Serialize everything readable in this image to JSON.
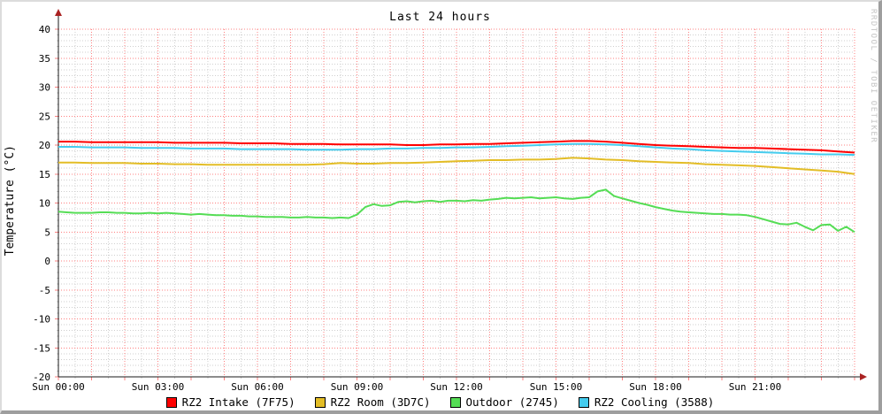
{
  "title": "Last 24 hours",
  "watermark": "RRDTOOL / TOBI OETIKER",
  "colors": {
    "axis": "#1a1a1a",
    "arrow": "#aa2222",
    "grid_major": "#ff8080",
    "grid_minor": "#cfcfcf",
    "text": "#000000",
    "watermark_text": "#c4c4c4",
    "background": "#ffffff"
  },
  "chart_data": {
    "type": "line",
    "title": "Last 24 hours",
    "xlabel": "",
    "ylabel": "Temperature (°C)",
    "ylim": [
      -20,
      40
    ],
    "xlim_hours": [
      0,
      24
    ],
    "grid": "on",
    "legend_position": "bottom",
    "y_major_step": 5,
    "y_minor_step": 1,
    "x_major_step_h": 1,
    "x_minor_step_h": 0.5,
    "y_tick_labels": [
      40,
      35,
      30,
      25,
      20,
      15,
      10,
      5,
      0,
      -5,
      -10,
      -15,
      -20
    ],
    "x_ticks": [
      {
        "hour": 0,
        "label": "Sun 00:00"
      },
      {
        "hour": 3,
        "label": "Sun 03:00"
      },
      {
        "hour": 6,
        "label": "Sun 06:00"
      },
      {
        "hour": 9,
        "label": "Sun 09:00"
      },
      {
        "hour": 12,
        "label": "Sun 12:00"
      },
      {
        "hour": 15,
        "label": "Sun 15:00"
      },
      {
        "hour": 18,
        "label": "Sun 18:00"
      },
      {
        "hour": 21,
        "label": "Sun 21:00"
      }
    ],
    "series": [
      {
        "name": "RZ2 Intake (7F75)",
        "color": "#ff0000",
        "step_h": 0.5,
        "values": [
          20.6,
          20.6,
          20.5,
          20.5,
          20.5,
          20.5,
          20.5,
          20.4,
          20.4,
          20.4,
          20.4,
          20.3,
          20.3,
          20.3,
          20.2,
          20.2,
          20.2,
          20.1,
          20.1,
          20.1,
          20.1,
          20.0,
          20.0,
          20.1,
          20.1,
          20.2,
          20.2,
          20.3,
          20.4,
          20.5,
          20.6,
          20.7,
          20.7,
          20.6,
          20.4,
          20.2,
          20.0,
          19.9,
          19.8,
          19.7,
          19.6,
          19.5,
          19.5,
          19.4,
          19.3,
          19.2,
          19.1,
          18.9,
          18.7
        ]
      },
      {
        "name": "RZ2 Room (3D7C)",
        "color": "#e3bd26",
        "step_h": 0.5,
        "values": [
          17.0,
          17.0,
          16.9,
          16.9,
          16.9,
          16.8,
          16.8,
          16.7,
          16.7,
          16.6,
          16.6,
          16.6,
          16.6,
          16.6,
          16.6,
          16.6,
          16.7,
          16.9,
          16.8,
          16.8,
          16.9,
          16.9,
          17.0,
          17.1,
          17.2,
          17.3,
          17.4,
          17.4,
          17.5,
          17.5,
          17.6,
          17.8,
          17.7,
          17.5,
          17.4,
          17.2,
          17.1,
          17.0,
          16.9,
          16.7,
          16.6,
          16.5,
          16.4,
          16.2,
          16.0,
          15.8,
          15.6,
          15.4,
          15.0
        ]
      },
      {
        "name": "Outdoor (2745)",
        "color": "#55dd55",
        "step_h": 0.25,
        "values": [
          8.5,
          8.4,
          8.3,
          8.3,
          8.3,
          8.4,
          8.4,
          8.3,
          8.3,
          8.2,
          8.2,
          8.3,
          8.2,
          8.3,
          8.2,
          8.1,
          8.0,
          8.1,
          8.0,
          7.9,
          7.9,
          7.8,
          7.8,
          7.7,
          7.7,
          7.6,
          7.6,
          7.6,
          7.5,
          7.5,
          7.6,
          7.5,
          7.5,
          7.4,
          7.5,
          7.4,
          8.0,
          9.3,
          9.8,
          9.5,
          9.6,
          10.2,
          10.3,
          10.1,
          10.3,
          10.4,
          10.2,
          10.4,
          10.4,
          10.3,
          10.5,
          10.4,
          10.6,
          10.7,
          10.9,
          10.8,
          10.9,
          11.0,
          10.8,
          10.9,
          11.0,
          10.8,
          10.7,
          10.9,
          11.0,
          12.0,
          12.3,
          11.2,
          10.8,
          10.4,
          10.0,
          9.7,
          9.3,
          9.0,
          8.7,
          8.5,
          8.4,
          8.3,
          8.2,
          8.1,
          8.1,
          8.0,
          8.0,
          7.9,
          7.6,
          7.2,
          6.8,
          6.4,
          6.3,
          6.6,
          5.9,
          5.3,
          6.2,
          6.3,
          5.2,
          5.9,
          5.0
        ]
      },
      {
        "name": "RZ2 Cooling (3588)",
        "color": "#44ccee",
        "step_h": 0.5,
        "values": [
          19.7,
          19.7,
          19.6,
          19.6,
          19.6,
          19.5,
          19.5,
          19.5,
          19.4,
          19.4,
          19.4,
          19.3,
          19.3,
          19.3,
          19.3,
          19.2,
          19.2,
          19.2,
          19.3,
          19.3,
          19.4,
          19.4,
          19.5,
          19.5,
          19.6,
          19.6,
          19.7,
          19.8,
          19.9,
          20.0,
          20.1,
          20.2,
          20.2,
          20.1,
          20.0,
          19.8,
          19.6,
          19.4,
          19.3,
          19.1,
          19.0,
          18.9,
          18.8,
          18.7,
          18.6,
          18.5,
          18.4,
          18.4,
          18.3
        ]
      }
    ]
  }
}
